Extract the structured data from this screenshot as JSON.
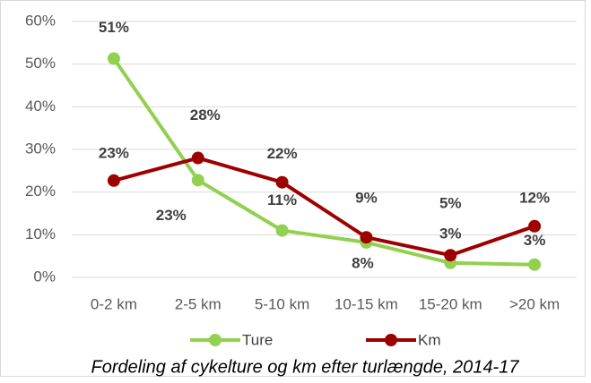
{
  "chart_data": {
    "type": "line",
    "title": "Fordeling af cykelture og km efter turlængde, 2014-17",
    "categories": [
      "0-2 km",
      "2-5 km",
      "5-10 km",
      "10-15 km",
      "15-20 km",
      ">20 km"
    ],
    "series": [
      {
        "name": "Ture",
        "color": "#92d050",
        "values": [
          51.3,
          22.8,
          11.0,
          8.2,
          3.4,
          3.0
        ],
        "value_labels": [
          "51%",
          "23%",
          "11%",
          "8%",
          "3%",
          "3%"
        ]
      },
      {
        "name": "Km",
        "color": "#9e0000",
        "values": [
          22.7,
          28.0,
          22.3,
          9.4,
          5.2,
          12.0
        ],
        "value_labels": [
          "23%",
          "28%",
          "22%",
          "9%",
          "5%",
          "12%"
        ]
      }
    ],
    "ylim": [
      0,
      60
    ],
    "yticks": [
      {
        "value": 0,
        "label": "0%"
      },
      {
        "value": 10,
        "label": "10%"
      },
      {
        "value": 20,
        "label": "20%"
      },
      {
        "value": 30,
        "label": "30%"
      },
      {
        "value": 40,
        "label": "40%"
      },
      {
        "value": 50,
        "label": "50%"
      },
      {
        "value": 60,
        "label": "60%"
      }
    ],
    "grid": true,
    "legend": "bottom"
  }
}
